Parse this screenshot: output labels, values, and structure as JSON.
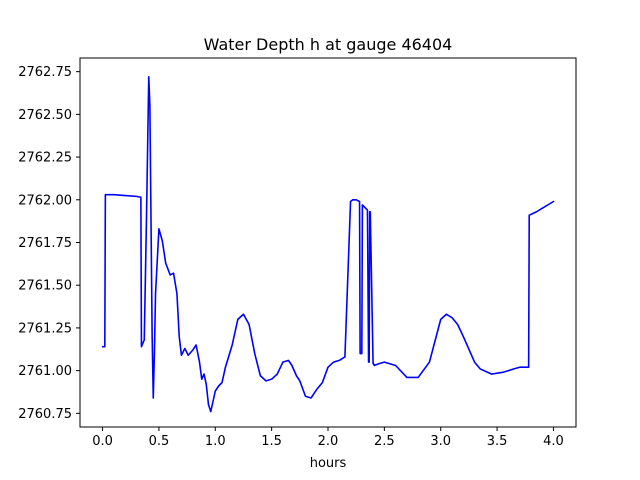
{
  "chart_data": {
    "type": "line",
    "title": "Water Depth h at gauge 46404",
    "xlabel": "hours",
    "ylabel": "",
    "xlim": [
      -0.2,
      4.2
    ],
    "ylim": [
      2760.67,
      2762.83
    ],
    "x_ticks": [
      0.0,
      0.5,
      1.0,
      1.5,
      2.0,
      2.5,
      3.0,
      3.5,
      4.0
    ],
    "x_tick_labels": [
      "0.0",
      "0.5",
      "1.0",
      "1.5",
      "2.0",
      "2.5",
      "3.0",
      "3.5",
      "4.0"
    ],
    "y_ticks": [
      2760.75,
      2761.0,
      2761.25,
      2761.5,
      2761.75,
      2762.0,
      2762.25,
      2762.5,
      2762.75
    ],
    "y_tick_labels": [
      "2760.75",
      "2761.00",
      "2761.25",
      "2761.50",
      "2761.75",
      "2762.00",
      "2762.25",
      "2762.50",
      "2762.75"
    ],
    "grid": false,
    "series": [
      {
        "color": "#0000ff",
        "x": [
          0.0,
          0.02,
          0.025,
          0.1,
          0.2,
          0.3,
          0.34,
          0.345,
          0.37,
          0.39,
          0.41,
          0.42,
          0.44,
          0.45,
          0.46,
          0.47,
          0.5,
          0.53,
          0.56,
          0.6,
          0.63,
          0.66,
          0.68,
          0.7,
          0.73,
          0.76,
          0.8,
          0.83,
          0.86,
          0.88,
          0.9,
          0.92,
          0.94,
          0.96,
          1.0,
          1.03,
          1.06,
          1.09,
          1.15,
          1.2,
          1.25,
          1.3,
          1.35,
          1.4,
          1.45,
          1.5,
          1.55,
          1.6,
          1.65,
          1.68,
          1.72,
          1.75,
          1.8,
          1.85,
          1.9,
          1.95,
          2.0,
          2.05,
          2.1,
          2.15,
          2.2,
          2.22,
          2.25,
          2.28,
          2.285,
          2.3,
          2.305,
          2.35,
          2.36,
          2.365,
          2.37,
          2.375,
          2.4,
          2.405,
          2.41,
          2.45,
          2.5,
          2.6,
          2.7,
          2.8,
          2.9,
          3.0,
          3.05,
          3.1,
          3.15,
          3.2,
          3.3,
          3.35,
          3.45,
          3.55,
          3.65,
          3.7,
          3.78,
          3.785,
          3.85,
          3.9,
          4.0
        ],
        "y": [
          2761.14,
          2761.14,
          2762.03,
          2762.03,
          2762.025,
          2762.02,
          2762.015,
          2761.14,
          2761.18,
          2761.9,
          2762.72,
          2762.55,
          2761.2,
          2760.84,
          2761.1,
          2761.45,
          2761.83,
          2761.76,
          2761.63,
          2761.56,
          2761.57,
          2761.45,
          2761.2,
          2761.09,
          2761.13,
          2761.09,
          2761.12,
          2761.15,
          2761.05,
          2760.95,
          2760.98,
          2760.92,
          2760.8,
          2760.76,
          2760.88,
          2760.91,
          2760.93,
          2761.02,
          2761.15,
          2761.3,
          2761.33,
          2761.27,
          2761.1,
          2760.97,
          2760.94,
          2760.95,
          2760.98,
          2761.05,
          2761.06,
          2761.03,
          2760.97,
          2760.94,
          2760.85,
          2760.84,
          2760.89,
          2760.93,
          2761.02,
          2761.05,
          2761.06,
          2761.08,
          2761.99,
          2762.0,
          2762.0,
          2761.99,
          2761.1,
          2761.1,
          2761.97,
          2761.94,
          2761.05,
          2761.05,
          2761.93,
          2761.93,
          2761.04,
          2761.04,
          2761.03,
          2761.04,
          2761.05,
          2761.03,
          2760.96,
          2760.96,
          2761.05,
          2761.3,
          2761.33,
          2761.31,
          2761.27,
          2761.2,
          2761.05,
          2761.01,
          2760.98,
          2760.99,
          2761.01,
          2761.02,
          2761.02,
          2761.91,
          2761.93,
          2761.95,
          2761.99
        ]
      }
    ]
  }
}
